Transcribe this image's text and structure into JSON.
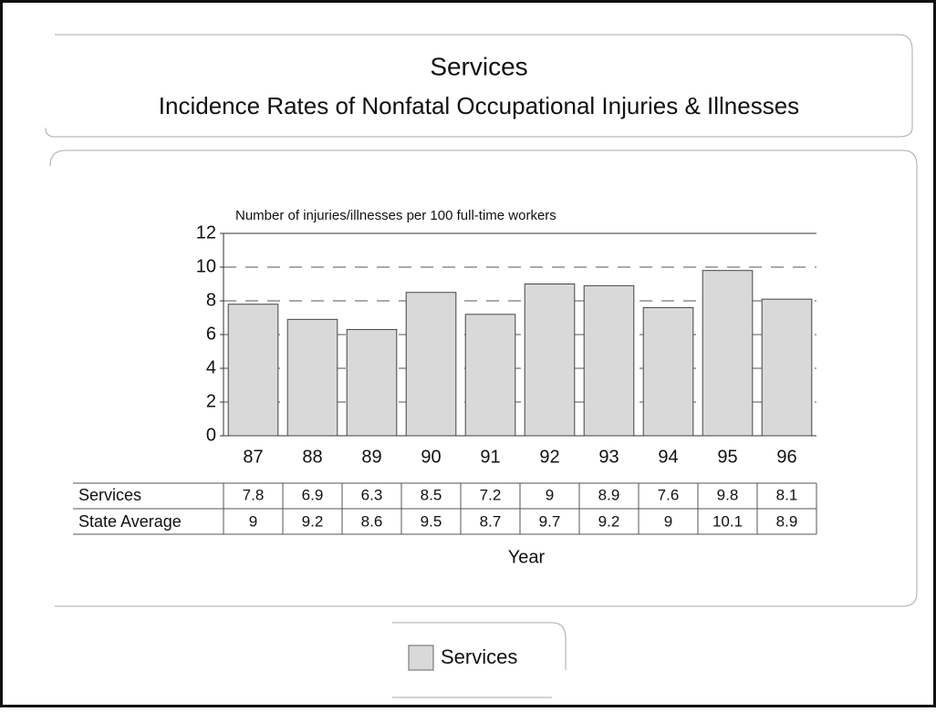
{
  "chart_data": {
    "type": "bar",
    "title": "Services",
    "subtitle": "Incidence Rates of Nonfatal Occupational Injuries & Illnesses",
    "y_label": "Number of injuries/illnesses per 100 full-time workers",
    "x_label": "Year",
    "categories": [
      "87",
      "88",
      "89",
      "90",
      "91",
      "92",
      "93",
      "94",
      "95",
      "96"
    ],
    "series": [
      {
        "name": "Services",
        "color": "#d9d9d9",
        "values": [
          7.8,
          6.9,
          6.3,
          8.5,
          7.2,
          9,
          8.9,
          7.6,
          9.8,
          8.1
        ]
      }
    ],
    "table_series": [
      {
        "name": "State Average",
        "values": [
          9,
          9.2,
          8.6,
          9.5,
          8.7,
          9.7,
          9.2,
          9,
          10.1,
          8.9
        ]
      }
    ],
    "ylim": [
      0,
      12
    ],
    "yticks": [
      0,
      2,
      4,
      6,
      8,
      10,
      12
    ],
    "grid": true
  }
}
